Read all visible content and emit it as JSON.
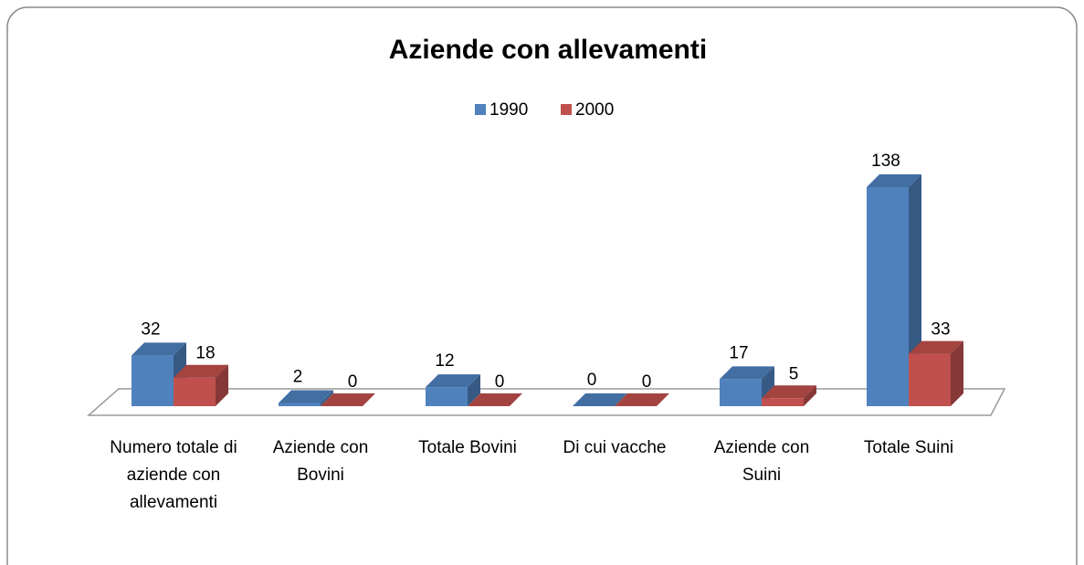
{
  "chart_data": {
    "type": "bar3d",
    "title": "Aziende con allevamenti",
    "categories": [
      "Numero totale di aziende con allevamenti",
      "Aziende con Bovini",
      "Totale Bovini",
      "Di cui vacche",
      "Aziende con Suini",
      "Totale Suini"
    ],
    "series": [
      {
        "name": "1990",
        "color": "#4f81bd",
        "values": [
          32,
          2,
          12,
          0,
          17,
          138
        ]
      },
      {
        "name": "2000",
        "color": "#c0504d",
        "values": [
          18,
          0,
          0,
          0,
          5,
          33
        ]
      }
    ],
    "legend": "top"
  }
}
